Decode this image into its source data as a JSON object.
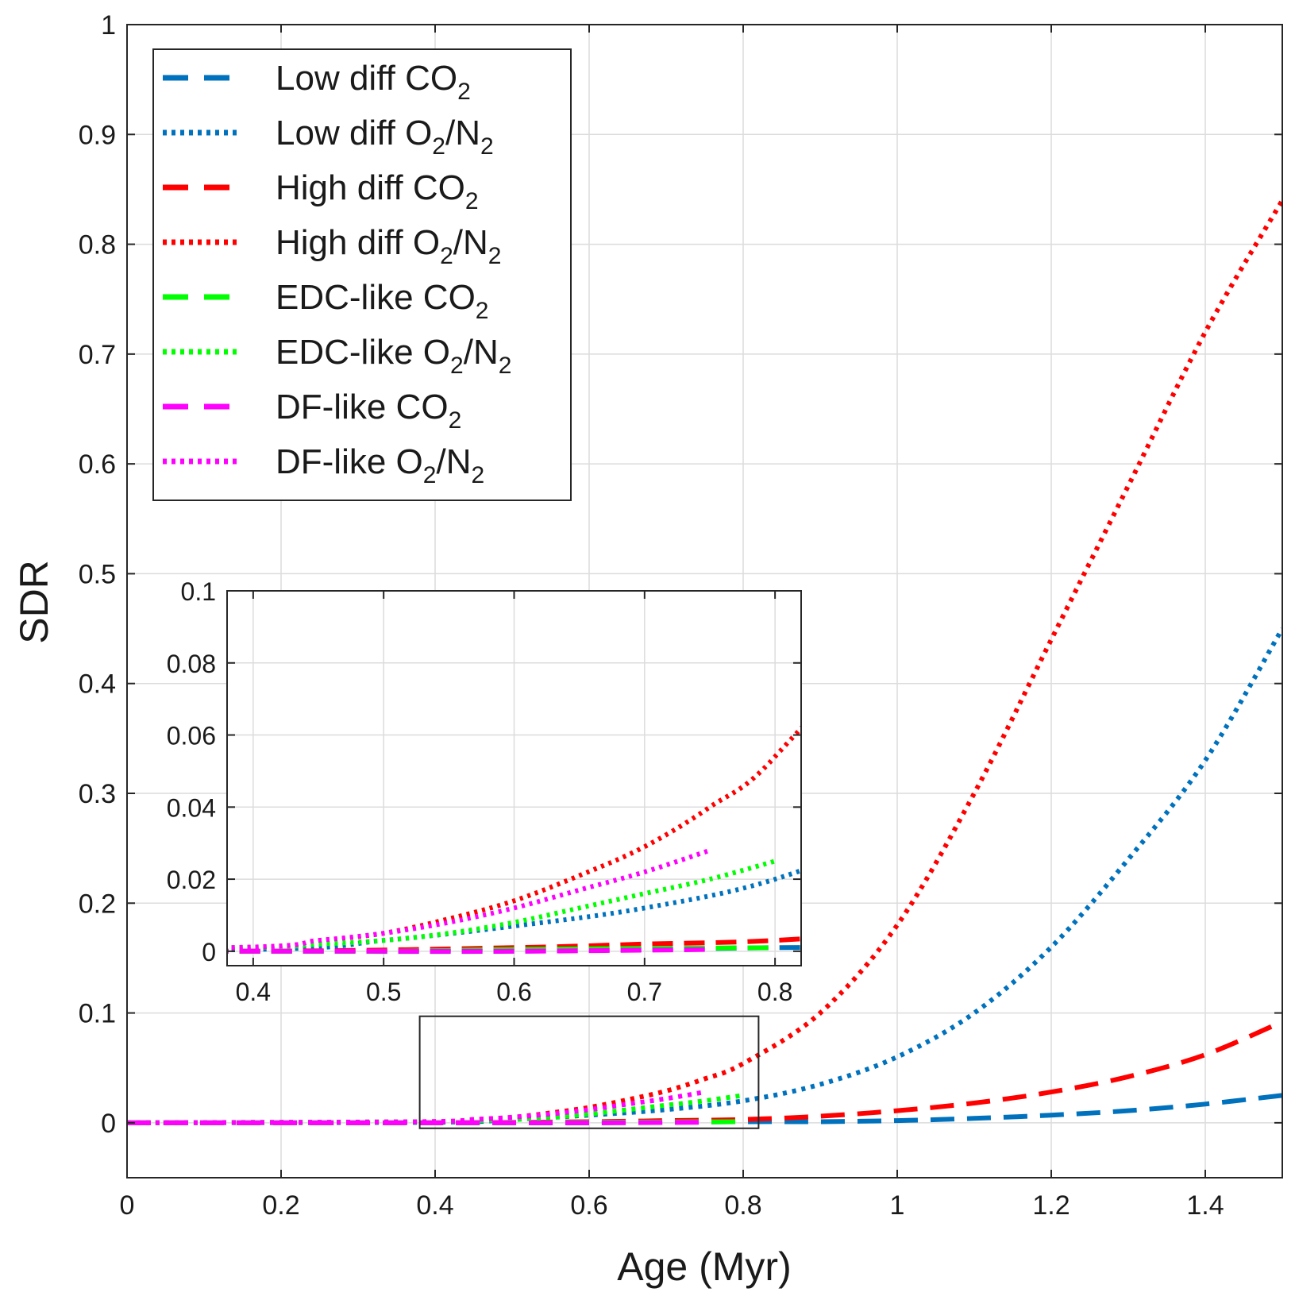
{
  "chart_data": {
    "type": "line",
    "xlabel": "Age (Myr)",
    "ylabel": "SDR",
    "xlim": [
      0,
      1.5
    ],
    "ylim": [
      -0.05,
      1
    ],
    "xticks": [
      0,
      0.2,
      0.4,
      0.6,
      0.8,
      1,
      1.2,
      1.4
    ],
    "xtick_labels": [
      "0",
      "0.2",
      "0.4",
      "0.6",
      "0.8",
      "1",
      "1.2",
      "1.4"
    ],
    "yticks": [
      0,
      0.1,
      0.2,
      0.3,
      0.4,
      0.5,
      0.6,
      0.7,
      0.8,
      0.9,
      1
    ],
    "ytick_labels": [
      "0",
      "0.1",
      "0.2",
      "0.3",
      "0.4",
      "0.5",
      "0.6",
      "0.7",
      "0.8",
      "0.9",
      "1"
    ],
    "grid": true,
    "legend_position": "top-left",
    "series": [
      {
        "name": "Low diff CO2",
        "label_main": "Low  diff  CO",
        "label_sub": "2",
        "label_tail": "",
        "color": "#0072BD",
        "style": "dashed",
        "x": [
          0,
          0.4,
          0.6,
          0.8,
          0.9,
          1.0,
          1.1,
          1.2,
          1.3,
          1.4,
          1.5
        ],
        "y": [
          0,
          0,
          0,
          0.001,
          0.001,
          0.002,
          0.004,
          0.007,
          0.011,
          0.017,
          0.025
        ]
      },
      {
        "name": "Low diff O2/N2",
        "label_main": "Low  diff  O",
        "label_sub": "2",
        "label_tail": "/N",
        "label_sub2": "2",
        "color": "#0072BD",
        "style": "dotted",
        "x": [
          0,
          0.4,
          0.5,
          0.6,
          0.7,
          0.8,
          0.9,
          1.0,
          1.1,
          1.2,
          1.3,
          1.4,
          1.5
        ],
        "y": [
          0,
          0.0005,
          0.003,
          0.007,
          0.012,
          0.02,
          0.035,
          0.06,
          0.1,
          0.16,
          0.24,
          0.33,
          0.45
        ]
      },
      {
        "name": "High diff CO2",
        "label_main": "High  diff  CO",
        "label_sub": "2",
        "label_tail": "",
        "color": "#FF0000",
        "style": "dashed",
        "x": [
          0,
          0.4,
          0.6,
          0.7,
          0.8,
          0.9,
          1.0,
          1.1,
          1.2,
          1.3,
          1.4,
          1.5
        ],
        "y": [
          0,
          0,
          0.001,
          0.002,
          0.003,
          0.006,
          0.011,
          0.018,
          0.028,
          0.042,
          0.062,
          0.092
        ]
      },
      {
        "name": "High diff O2/N2",
        "label_main": "High  diff  O",
        "label_sub": "2",
        "label_tail": "/N",
        "label_sub2": "2",
        "color": "#FF0000",
        "style": "dotted",
        "x": [
          0,
          0.38,
          0.45,
          0.5,
          0.55,
          0.6,
          0.65,
          0.7,
          0.75,
          0.8,
          0.9,
          1.0,
          1.1,
          1.2,
          1.3,
          1.4,
          1.5
        ],
        "y": [
          0,
          0.001,
          0.003,
          0.005,
          0.009,
          0.014,
          0.021,
          0.029,
          0.04,
          0.054,
          0.1,
          0.18,
          0.3,
          0.44,
          0.58,
          0.72,
          0.84
        ]
      },
      {
        "name": "EDC-like CO2",
        "label_main": "EDC-like  CO",
        "label_sub": "2",
        "label_tail": "",
        "color": "#00FF00",
        "style": "dashed",
        "x": [
          0,
          0.4,
          0.5,
          0.6,
          0.7,
          0.8
        ],
        "y": [
          0,
          0,
          0,
          0.0005,
          0.0008,
          0.001
        ]
      },
      {
        "name": "EDC-like O2/N2",
        "label_main": "EDC-like  O",
        "label_sub": "2",
        "label_tail": "/N",
        "label_sub2": "2",
        "color": "#00FF00",
        "style": "dotted",
        "x": [
          0,
          0.38,
          0.45,
          0.5,
          0.55,
          0.6,
          0.65,
          0.7,
          0.75,
          0.8
        ],
        "y": [
          0,
          0.001,
          0.002,
          0.003,
          0.005,
          0.008,
          0.012,
          0.016,
          0.02,
          0.025
        ]
      },
      {
        "name": "DF-like CO2",
        "label_main": "DF-like  CO",
        "label_sub": "2",
        "label_tail": "",
        "color": "#FF00FF",
        "style": "dashed",
        "x": [
          0,
          0.4,
          0.5,
          0.6,
          0.7,
          0.75
        ],
        "y": [
          0,
          0,
          0,
          0,
          0.0003,
          0.0005
        ]
      },
      {
        "name": "DF-like O2/N2",
        "label_main": "DF-like  O",
        "label_sub": "2",
        "label_tail": "/N",
        "label_sub2": "2",
        "color": "#FF00FF",
        "style": "dotted",
        "x": [
          0,
          0.38,
          0.45,
          0.5,
          0.55,
          0.6,
          0.65,
          0.7,
          0.75
        ],
        "y": [
          0,
          0.001,
          0.003,
          0.005,
          0.008,
          0.012,
          0.017,
          0.022,
          0.028
        ]
      }
    ],
    "inset": {
      "xlim": [
        0.38,
        0.82
      ],
      "ylim": [
        -0.004,
        0.1
      ],
      "xticks": [
        0.4,
        0.5,
        0.6,
        0.7,
        0.8
      ],
      "xtick_labels": [
        "0.4",
        "0.5",
        "0.6",
        "0.7",
        "0.8"
      ],
      "yticks": [
        0,
        0.02,
        0.04,
        0.06,
        0.08,
        0.1
      ],
      "ytick_labels": [
        "0",
        "0.02",
        "0.04",
        "0.06",
        "0.08",
        "0.1"
      ],
      "zoom_box": {
        "x": [
          0.38,
          0.82
        ],
        "y": [
          -0.005,
          0.097
        ]
      }
    }
  }
}
